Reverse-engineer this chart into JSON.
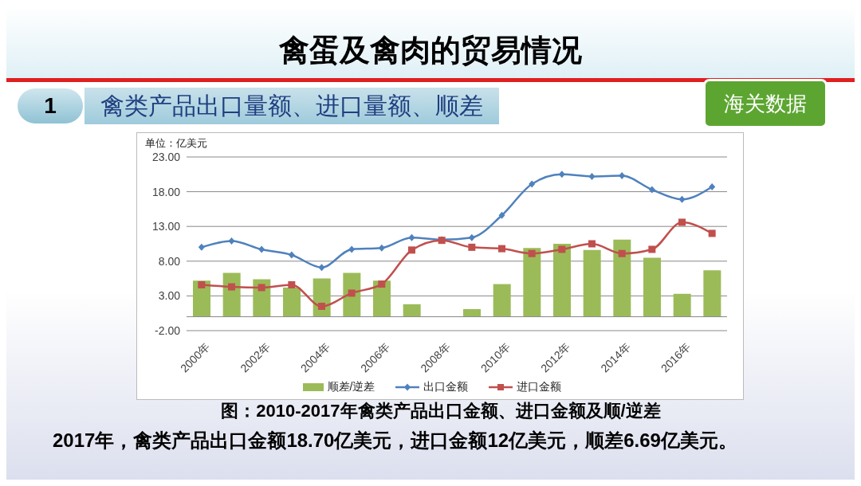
{
  "chart_data": {
    "type": "bar",
    "title": "禽蛋及禽肉的贸易情况",
    "subtitle": "禽类产品出口量额、进口量额、顺差",
    "ylabel": "单位：亿美元",
    "categories": [
      "2000年",
      null,
      "2002年",
      null,
      "2004年",
      null,
      "2006年",
      null,
      "2008年",
      null,
      "2010年",
      null,
      "2012年",
      null,
      "2014年",
      null,
      "2016年",
      null
    ],
    "series": [
      {
        "name": "顺差/逆差",
        "color": "#9bbb59",
        "values": [
          5.2,
          6.3,
          5.4,
          4.2,
          5.5,
          6.3,
          5.2,
          1.8,
          0,
          1.1,
          4.7,
          9.9,
          10.5,
          9.6,
          11.1,
          8.5,
          3.3,
          6.69
        ]
      },
      {
        "name": "出口金额",
        "type": "line",
        "color": "#4f81bd",
        "marker": "diamond",
        "values": [
          10.0,
          10.9,
          9.7,
          8.9,
          7.1,
          9.7,
          9.9,
          11.4,
          11.1,
          11.4,
          14.6,
          19.1,
          20.5,
          20.2,
          20.3,
          18.3,
          16.9,
          18.7
        ]
      },
      {
        "name": "进口金额",
        "type": "line",
        "color": "#c0504d",
        "marker": "square",
        "values": [
          4.6,
          4.3,
          4.2,
          4.6,
          1.5,
          3.4,
          4.7,
          9.6,
          11.0,
          10.0,
          9.8,
          9.1,
          9.7,
          10.5,
          9.1,
          9.7,
          13.6,
          12
        ]
      }
    ],
    "ylim": [
      -2,
      23
    ],
    "yticks": [
      {
        "value": -2,
        "label": "-2.00"
      },
      {
        "value": 3,
        "label": "3.00"
      },
      {
        "value": 8,
        "label": "8.00"
      },
      {
        "value": 13,
        "label": "13.00"
      },
      {
        "value": 18,
        "label": "18.00"
      },
      {
        "value": 23,
        "label": "23.00"
      }
    ],
    "grid": "y",
    "legend": "bottom",
    "annotations": [
      "1",
      "海关数据",
      "图：2010-2017年禽类产品出口金额、进口金额及顺/逆差",
      "2017年，禽类产品出口金额18.70亿美元，进口金额12亿美元，顺差6.69亿美元。"
    ]
  }
}
